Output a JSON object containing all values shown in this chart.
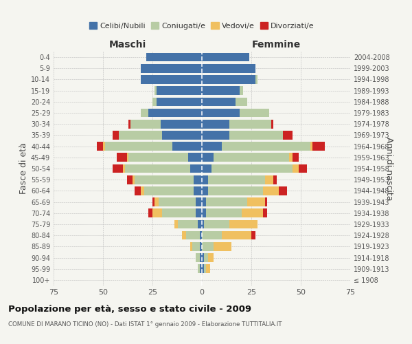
{
  "age_groups": [
    "100+",
    "95-99",
    "90-94",
    "85-89",
    "80-84",
    "75-79",
    "70-74",
    "65-69",
    "60-64",
    "55-59",
    "50-54",
    "45-49",
    "40-44",
    "35-39",
    "30-34",
    "25-29",
    "20-24",
    "15-19",
    "10-14",
    "5-9",
    "0-4"
  ],
  "birth_years": [
    "≤ 1908",
    "1909-1913",
    "1914-1918",
    "1919-1923",
    "1924-1928",
    "1929-1933",
    "1934-1938",
    "1939-1943",
    "1944-1948",
    "1949-1953",
    "1954-1958",
    "1959-1963",
    "1964-1968",
    "1969-1973",
    "1974-1978",
    "1979-1983",
    "1984-1988",
    "1989-1993",
    "1994-1998",
    "1999-2003",
    "2004-2008"
  ],
  "maschi": {
    "celibi": [
      0,
      1,
      1,
      1,
      1,
      2,
      3,
      3,
      4,
      4,
      6,
      7,
      15,
      20,
      21,
      27,
      23,
      23,
      31,
      31,
      28
    ],
    "coniugati": [
      0,
      1,
      2,
      4,
      7,
      10,
      17,
      19,
      25,
      30,
      33,
      30,
      34,
      22,
      15,
      4,
      2,
      1,
      0,
      0,
      0
    ],
    "vedovi": [
      0,
      0,
      0,
      1,
      2,
      2,
      5,
      2,
      2,
      1,
      1,
      1,
      1,
      0,
      0,
      0,
      0,
      0,
      0,
      0,
      0
    ],
    "divorziati": [
      0,
      0,
      0,
      0,
      0,
      0,
      2,
      1,
      3,
      3,
      5,
      5,
      3,
      3,
      1,
      0,
      0,
      0,
      0,
      0,
      0
    ]
  },
  "femmine": {
    "nubili": [
      0,
      1,
      1,
      0,
      0,
      1,
      2,
      2,
      3,
      3,
      5,
      6,
      10,
      14,
      14,
      19,
      17,
      19,
      27,
      27,
      24
    ],
    "coniugate": [
      0,
      1,
      2,
      6,
      10,
      13,
      18,
      21,
      28,
      29,
      41,
      38,
      45,
      27,
      21,
      15,
      6,
      2,
      1,
      0,
      0
    ],
    "vedove": [
      0,
      2,
      3,
      9,
      15,
      14,
      11,
      9,
      8,
      4,
      3,
      2,
      1,
      0,
      0,
      0,
      0,
      0,
      0,
      0,
      0
    ],
    "divorziate": [
      0,
      0,
      0,
      0,
      2,
      0,
      2,
      1,
      4,
      2,
      4,
      3,
      6,
      5,
      1,
      0,
      0,
      0,
      0,
      0,
      0
    ]
  },
  "colors": {
    "celibi": "#4472a8",
    "coniugati": "#b8cca4",
    "vedovi": "#f0c060",
    "divorziati": "#cc2222"
  },
  "xlim": 75,
  "title": "Popolazione per età, sesso e stato civile - 2009",
  "subtitle": "COMUNE DI MARANO TICINO (NO) - Dati ISTAT 1° gennaio 2009 - Elaborazione TUTTITALIA.IT",
  "ylabel_left": "Fasce di età",
  "ylabel_right": "Anni di nascita",
  "xlabel_left": "Maschi",
  "xlabel_right": "Femmine",
  "bg_color": "#f5f5f0",
  "grid_color": "#bbbbbb"
}
